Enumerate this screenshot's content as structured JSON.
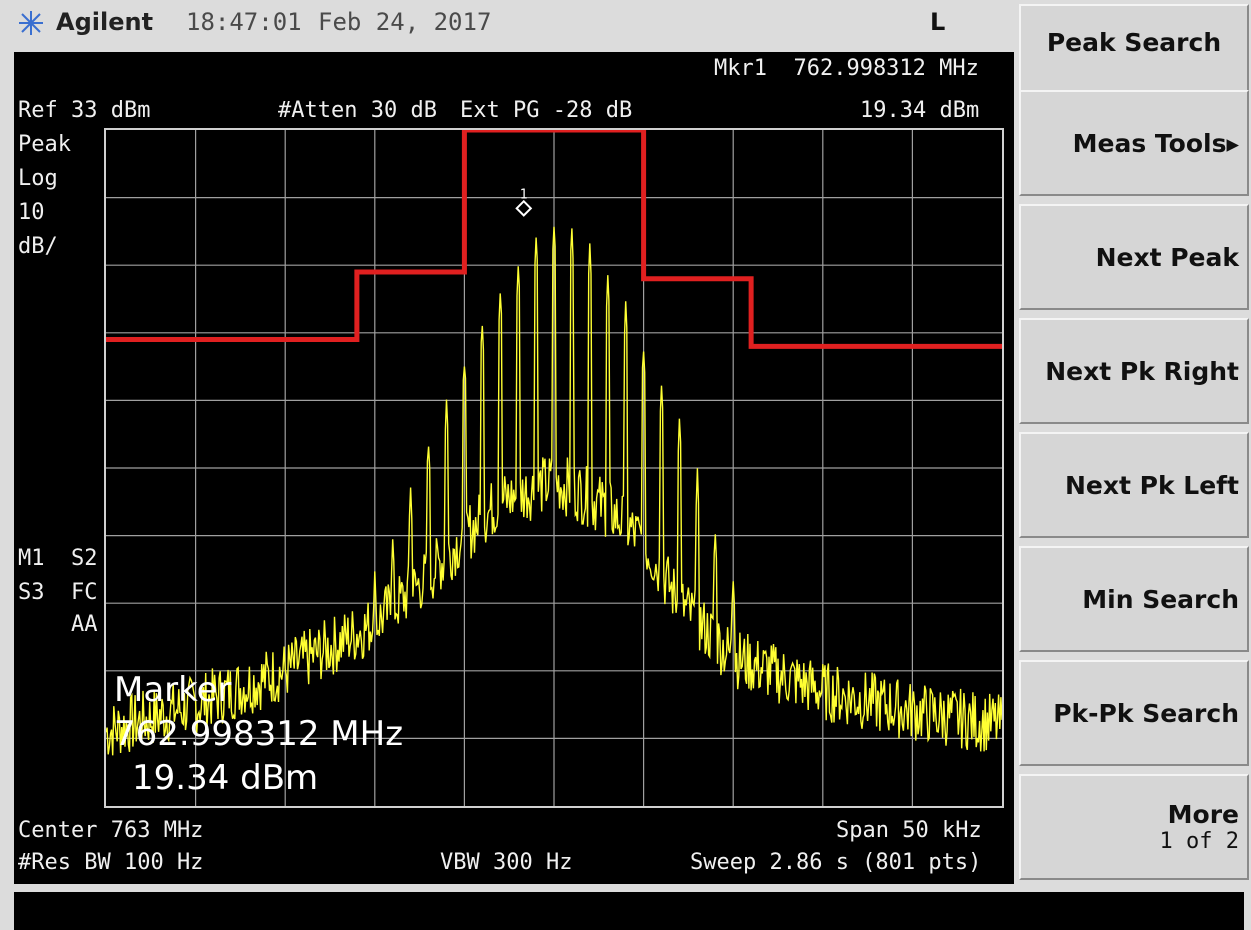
{
  "status_bar": {
    "brand": "Agilent",
    "time": "18:47:01",
    "date": "Feb 24, 2017",
    "indicator": "L"
  },
  "display": {
    "marker_readout_freq": "Mkr1  762.998312 MHz",
    "marker_readout_level": "19.34 dBm",
    "ref_level": "Ref 33 dBm",
    "atten": "#Atten 30 dB",
    "ext_pg": "Ext PG -28 dB",
    "left_labels": [
      "Peak",
      "Log",
      "10",
      "dB/"
    ],
    "status_labels": [
      "M1  S2",
      "S3  FC",
      "    AA"
    ],
    "marker_label": "1",
    "marker_box": {
      "title": "Marker",
      "freq": "762.998312 MHz",
      "level": "19.34 dBm"
    },
    "center": "Center 763 MHz",
    "span": "Span 50 kHz",
    "res_bw": "#Res BW 100 Hz",
    "vbw": "VBW 300 Hz",
    "sweep": "Sweep 2.86 s (801 pts)"
  },
  "softkeys": [
    {
      "label": "Peak Search"
    },
    {
      "label": "Meas Tools▸"
    },
    {
      "label": "Next Peak"
    },
    {
      "label": "Next Pk Right"
    },
    {
      "label": "Next Pk Left"
    },
    {
      "label": "Min Search"
    },
    {
      "label": "Pk-Pk Search"
    },
    {
      "label": "More",
      "sub": "1 of 2"
    }
  ],
  "colors": {
    "trace": "#ffff33",
    "limit_line": "#e02020",
    "graticule": "#a0a0a0",
    "screen": "#000000"
  },
  "icons": {
    "brand": "agilent-spark-icon",
    "marker": "marker-diamond-icon"
  },
  "chart_data": {
    "type": "line",
    "center_mhz": 763,
    "span_khz": 50,
    "ref_level_dbm": 33,
    "scale_db_per_div": 10,
    "ylim": [
      -67,
      33
    ],
    "xlim_offset_khz": [
      -25,
      25
    ],
    "grid": true,
    "marker": {
      "freq_mhz": 762.998312,
      "level_dbm": 19.34
    },
    "limit_line": {
      "x_offset_khz": [
        -25,
        -11,
        -11,
        -5,
        -5,
        5,
        5,
        11,
        11,
        25
      ],
      "y_dbm": [
        2,
        2,
        12,
        12,
        33,
        33,
        11,
        11,
        1,
        1
      ]
    },
    "trace_envelope": {
      "x_offset_khz": [
        -25,
        -20,
        -15,
        -10,
        -7,
        -5,
        -3,
        -1,
        0,
        1,
        3,
        5,
        7,
        10,
        15,
        20,
        25
      ],
      "y_dbm": [
        -56,
        -52,
        -47,
        -40,
        -33,
        -27,
        -22,
        -20,
        -19,
        -20,
        -23,
        -28,
        -37,
        -45,
        -50,
        -53,
        -55
      ]
    },
    "trace_spurs": {
      "x_offset_khz": [
        -10,
        -9,
        -8,
        -7,
        -6,
        -5,
        -4,
        -3,
        -2,
        -1,
        0,
        1,
        2,
        3,
        4,
        5,
        6,
        7,
        8,
        9,
        10
      ],
      "y_dbm": [
        -33,
        -28,
        -20,
        -13,
        -7,
        -1,
        5,
        9,
        13,
        17,
        19.34,
        18,
        16,
        11,
        7,
        1,
        -4,
        -10,
        -18,
        -26,
        -33
      ]
    }
  }
}
